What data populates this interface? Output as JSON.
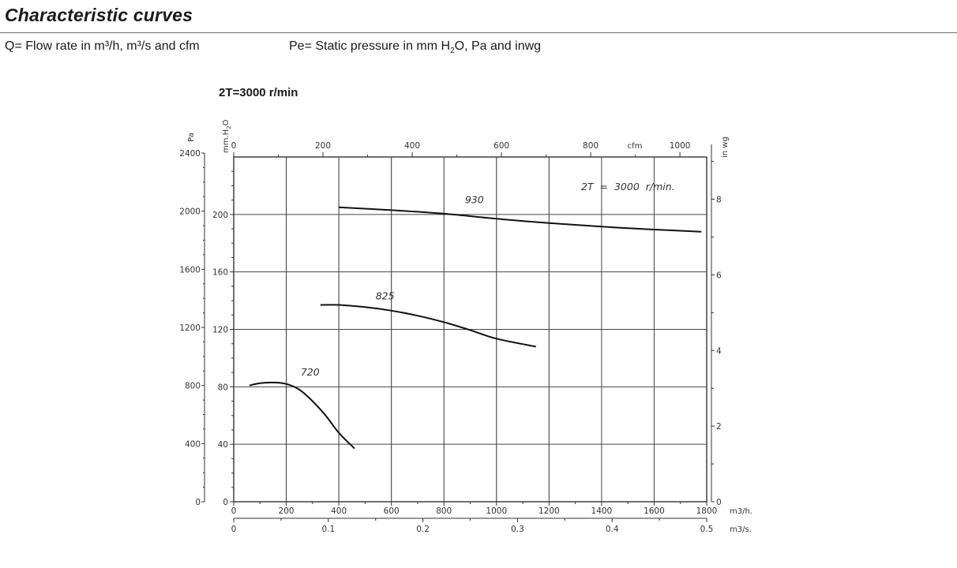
{
  "header": {
    "title": "Characteristic curves",
    "flow_legend": "Q= Flow rate in m³/h, m³/s and cfm",
    "pressure_legend_pre": "Pe= Static pressure in mm H",
    "pressure_legend_sub": "2",
    "pressure_legend_post": "O, Pa and inwg",
    "speed_label": "2T=3000 r/min"
  },
  "chart_data": {
    "type": "line",
    "annotation": "2T  =  3000  r/min.",
    "axes": {
      "x_m3h": {
        "unit": "m3/h.",
        "range": [
          0,
          1800
        ],
        "ticks": [
          0,
          200,
          400,
          600,
          800,
          1000,
          1200,
          1400,
          1600,
          1800
        ]
      },
      "x_m3s": {
        "unit": "m3/s.",
        "range": [
          0,
          0.5
        ],
        "ticks": [
          0,
          0.1,
          0.2,
          0.3,
          0.4,
          0.5
        ],
        "tick_labels": [
          "0",
          "0.1",
          "0.2",
          "0.3",
          "0.4",
          "0.5"
        ]
      },
      "x_cfm": {
        "unit": "cfm",
        "range": [
          0,
          1060
        ],
        "ticks": [
          0,
          200,
          400,
          600,
          800,
          1000
        ]
      },
      "y_mmh2o": {
        "unit": "mm H2O",
        "unit_pre": "mm.H",
        "unit_sub": "2",
        "unit_post": "O",
        "range": [
          0,
          240
        ],
        "ticks": [
          0,
          40,
          80,
          120,
          160,
          200
        ]
      },
      "y_pa": {
        "unit": "Pa",
        "range": [
          0,
          2400
        ],
        "ticks": [
          0,
          400,
          800,
          1200,
          1600,
          2000,
          2400
        ]
      },
      "y_inwg": {
        "unit": "in wg",
        "range": [
          0,
          9.45
        ],
        "ticks": [
          0,
          2,
          4,
          6,
          8
        ]
      }
    },
    "grid_x_m3h": [
      200,
      400,
      600,
      800,
      1000,
      1200,
      1400,
      1600
    ],
    "grid_y_mmh2o": [
      40,
      80,
      120,
      160,
      200
    ],
    "series": [
      {
        "name": "720",
        "label_at": [
          255,
          88
        ],
        "points": [
          [
            60,
            81
          ],
          [
            100,
            82.5
          ],
          [
            150,
            83
          ],
          [
            200,
            82
          ],
          [
            250,
            78
          ],
          [
            300,
            70
          ],
          [
            350,
            60
          ],
          [
            400,
            48
          ],
          [
            460,
            37
          ]
        ]
      },
      {
        "name": "825",
        "label_at": [
          540,
          141
        ],
        "points": [
          [
            330,
            137
          ],
          [
            400,
            137
          ],
          [
            500,
            135.5
          ],
          [
            600,
            133
          ],
          [
            700,
            129.5
          ],
          [
            800,
            125
          ],
          [
            900,
            119.5
          ],
          [
            1000,
            113.5
          ],
          [
            1150,
            108
          ]
        ]
      },
      {
        "name": "930",
        "label_at": [
          880,
          208
        ],
        "points": [
          [
            400,
            205
          ],
          [
            600,
            203
          ],
          [
            800,
            200.5
          ],
          [
            1000,
            197
          ],
          [
            1200,
            194
          ],
          [
            1400,
            191.5
          ],
          [
            1600,
            189.5
          ],
          [
            1780,
            188
          ]
        ]
      }
    ]
  }
}
